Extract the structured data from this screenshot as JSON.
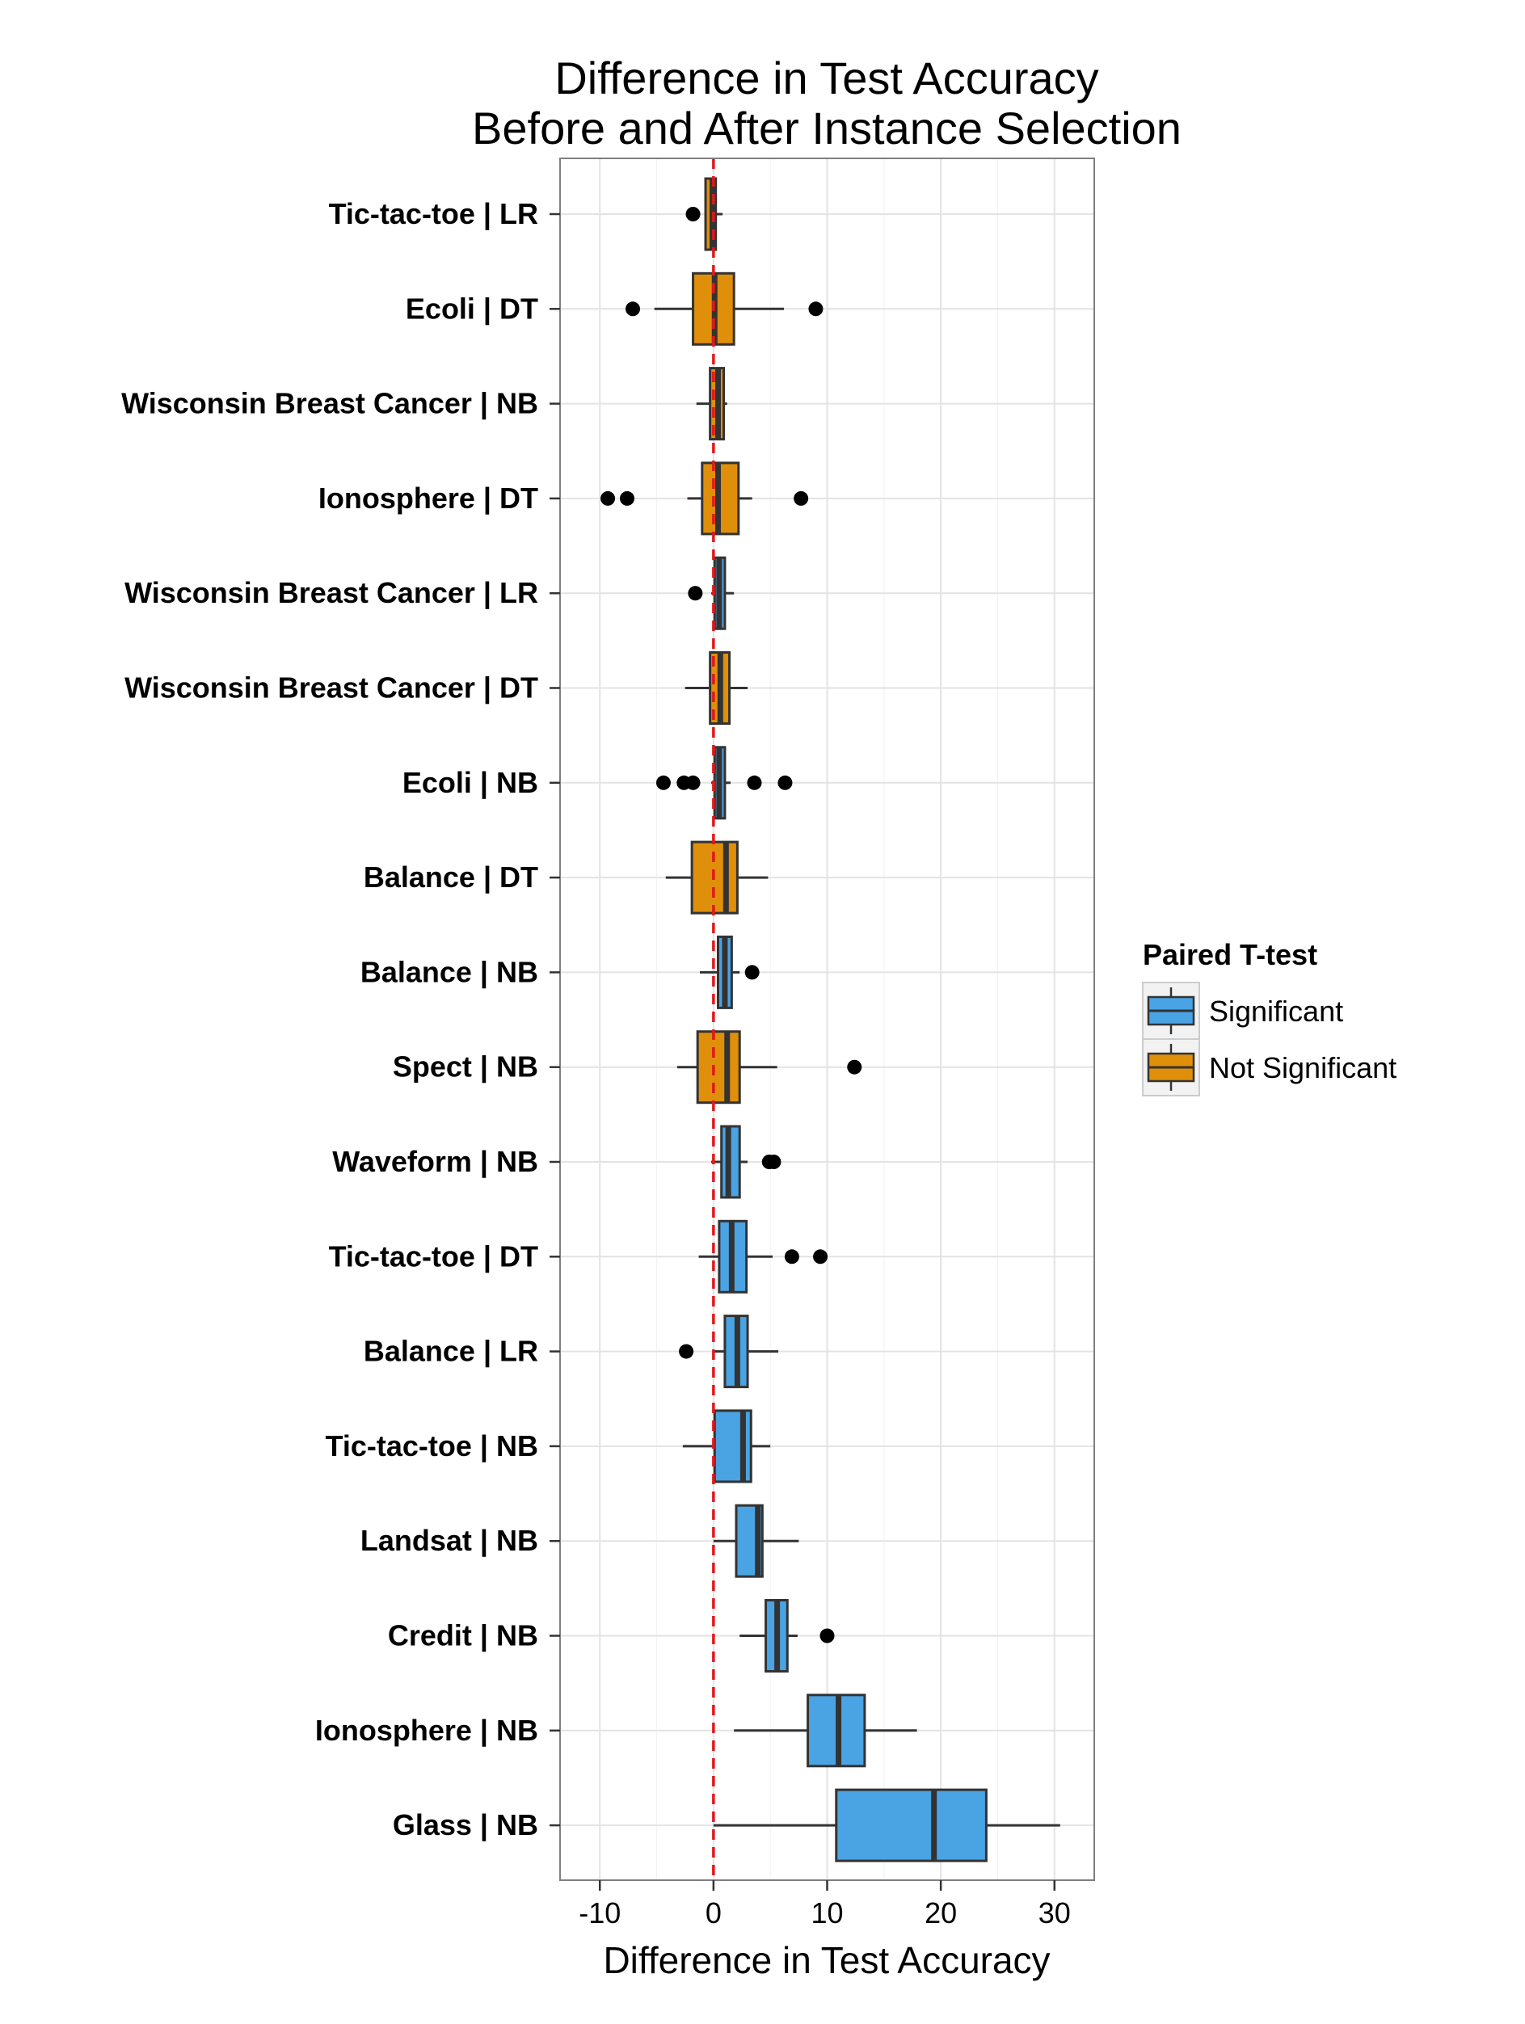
{
  "chart_data": {
    "type": "boxplot",
    "title": [
      "Difference in Test Accuracy",
      "Before and After Instance Selection"
    ],
    "xlabel": "Difference in Test Accuracy",
    "ylabel": "",
    "xlim": [
      -13.5,
      33.5
    ],
    "xticks": [
      -10,
      0,
      10,
      20,
      30
    ],
    "xtick_labels": [
      "-10",
      "0",
      "10",
      "20",
      "30"
    ],
    "grid": true,
    "reference_line": {
      "x": 0,
      "color": "#e3171a",
      "style": "dashed"
    },
    "legend": {
      "title": "Paired T-test",
      "position": "right",
      "entries": [
        {
          "label": "Significant",
          "color": "#4aa3e3"
        },
        {
          "label": "Not Significant",
          "color": "#e08f0b"
        }
      ]
    },
    "categories": [
      "Tic-tac-toe | LR",
      "Ecoli | DT",
      "Wisconsin Breast Cancer | NB",
      "Ionosphere | DT",
      "Wisconsin Breast Cancer | LR",
      "Wisconsin Breast Cancer | DT",
      "Ecoli | NB",
      "Balance | DT",
      "Balance | NB",
      "Spect | NB",
      "Waveform | NB",
      "Tic-tac-toe | DT",
      "Balance | LR",
      "Tic-tac-toe | NB",
      "Landsat | NB",
      "Credit | NB",
      "Ionosphere | NB",
      "Glass | NB"
    ],
    "boxes": [
      {
        "label": "Tic-tac-toe | LR",
        "group": "Not Significant",
        "whisker_low": -0.7,
        "q1": -0.7,
        "median": -0.1,
        "q3": 0.2,
        "whisker_high": 0.8,
        "outliers": [
          -1.8
        ]
      },
      {
        "label": "Ecoli | DT",
        "group": "Not Significant",
        "whisker_low": -5.2,
        "q1": -1.8,
        "median": 0.1,
        "q3": 1.8,
        "whisker_high": 6.2,
        "outliers": [
          -7.1,
          9.0
        ]
      },
      {
        "label": "Wisconsin Breast Cancer | NB",
        "group": "Not Significant",
        "whisker_low": -1.5,
        "q1": -0.3,
        "median": 0.4,
        "q3": 0.9,
        "whisker_high": 1.2,
        "outliers": []
      },
      {
        "label": "Ionosphere | DT",
        "group": "Not Significant",
        "whisker_low": -2.3,
        "q1": -1.0,
        "median": 0.4,
        "q3": 2.2,
        "whisker_high": 3.4,
        "outliers": [
          -9.3,
          -7.6,
          7.7
        ]
      },
      {
        "label": "Wisconsin Breast Cancer | LR",
        "group": "Significant",
        "whisker_low": -0.2,
        "q1": 0.1,
        "median": 0.5,
        "q3": 1.0,
        "whisker_high": 1.8,
        "outliers": [
          -1.6
        ]
      },
      {
        "label": "Wisconsin Breast Cancer | DT",
        "group": "Not Significant",
        "whisker_low": -2.5,
        "q1": -0.3,
        "median": 0.6,
        "q3": 1.4,
        "whisker_high": 3.0,
        "outliers": []
      },
      {
        "label": "Ecoli | NB",
        "group": "Significant",
        "whisker_low": -0.2,
        "q1": 0.1,
        "median": 0.5,
        "q3": 1.0,
        "whisker_high": 1.5,
        "outliers": [
          -4.4,
          -2.6,
          -1.8,
          3.6,
          6.3
        ]
      },
      {
        "label": "Balance | DT",
        "group": "Not Significant",
        "whisker_low": -4.2,
        "q1": -1.9,
        "median": 1.1,
        "q3": 2.1,
        "whisker_high": 4.8,
        "outliers": []
      },
      {
        "label": "Balance | NB",
        "group": "Significant",
        "whisker_low": -1.2,
        "q1": 0.4,
        "median": 1.0,
        "q3": 1.6,
        "whisker_high": 2.3,
        "outliers": [
          3.4
        ]
      },
      {
        "label": "Spect | NB",
        "group": "Not Significant",
        "whisker_low": -3.2,
        "q1": -1.4,
        "median": 1.2,
        "q3": 2.3,
        "whisker_high": 5.6,
        "outliers": [
          12.4
        ]
      },
      {
        "label": "Waveform | NB",
        "group": "Significant",
        "whisker_low": -0.2,
        "q1": 0.7,
        "median": 1.3,
        "q3": 2.3,
        "whisker_high": 3.0,
        "outliers": [
          4.9,
          5.3
        ]
      },
      {
        "label": "Tic-tac-toe | DT",
        "group": "Significant",
        "whisker_low": -1.3,
        "q1": 0.5,
        "median": 1.6,
        "q3": 2.9,
        "whisker_high": 5.2,
        "outliers": [
          6.9,
          9.4
        ]
      },
      {
        "label": "Balance | LR",
        "group": "Significant",
        "whisker_low": 0.0,
        "q1": 1.0,
        "median": 2.1,
        "q3": 3.0,
        "whisker_high": 5.7,
        "outliers": [
          -2.4
        ]
      },
      {
        "label": "Tic-tac-toe | NB",
        "group": "Significant",
        "whisker_low": -2.7,
        "q1": 0.1,
        "median": 2.6,
        "q3": 3.3,
        "whisker_high": 5.0,
        "outliers": []
      },
      {
        "label": "Landsat | NB",
        "group": "Significant",
        "whisker_low": 0.0,
        "q1": 2.0,
        "median": 3.9,
        "q3": 4.3,
        "whisker_high": 7.5,
        "outliers": []
      },
      {
        "label": "Credit | NB",
        "group": "Significant",
        "whisker_low": 2.3,
        "q1": 4.6,
        "median": 5.6,
        "q3": 6.5,
        "whisker_high": 7.4,
        "outliers": [
          10.0
        ]
      },
      {
        "label": "Ionosphere | NB",
        "group": "Significant",
        "whisker_low": 1.8,
        "q1": 8.3,
        "median": 11.0,
        "q3": 13.3,
        "whisker_high": 17.9,
        "outliers": []
      },
      {
        "label": "Glass | NB",
        "group": "Significant",
        "whisker_low": 0.0,
        "q1": 10.8,
        "median": 19.4,
        "q3": 24.0,
        "whisker_high": 30.5,
        "outliers": []
      }
    ]
  }
}
